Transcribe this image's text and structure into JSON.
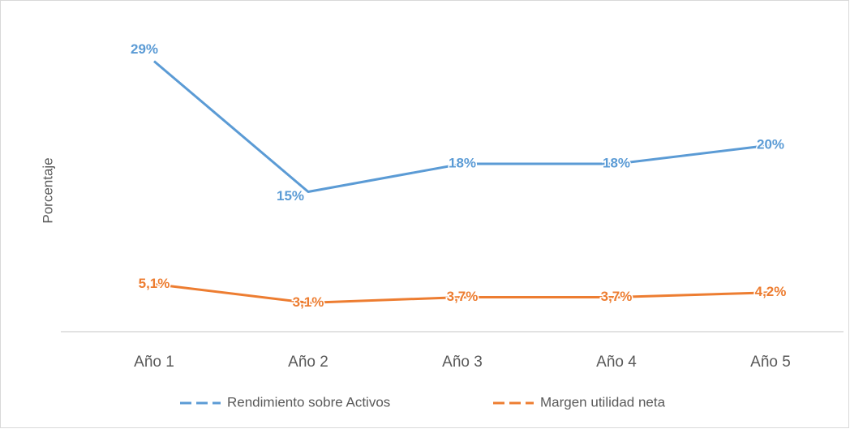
{
  "chart_data": {
    "type": "line",
    "y_label": "Porcentaje",
    "categories": [
      "Año 1",
      "Año 2",
      "Año 3",
      "Año 4",
      "Año 5"
    ],
    "series": [
      {
        "name": "Rendimiento sobre Activos",
        "color": "#5b9bd5",
        "values": [
          29,
          15,
          18,
          18,
          20
        ],
        "value_labels": [
          "29%",
          "15%",
          "18%",
          "18%",
          "20%"
        ]
      },
      {
        "name": "Margen utilidad neta",
        "color": "#ed7d31",
        "values": [
          5.1,
          3.1,
          3.7,
          3.7,
          4.2
        ],
        "value_labels": [
          "5,1%",
          "3,1%",
          "3,7%",
          "3,7%",
          "4,2%"
        ]
      }
    ],
    "ylim": [
      0,
      30
    ],
    "legend": "bottom"
  }
}
